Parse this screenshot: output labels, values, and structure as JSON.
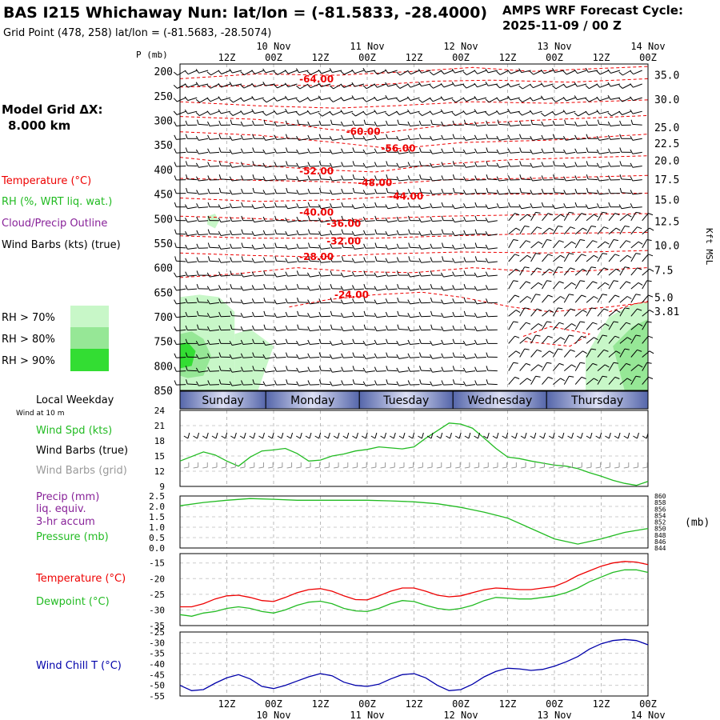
{
  "header": {
    "title": "BAS I215 Whichaway Nun:  lat/lon = (-81.5833, -28.4000)",
    "subtitle": "Grid Point (478, 258) lat/lon = (-81.5683, -28.5074)",
    "forecast_label": "AMPS WRF Forecast Cycle:",
    "forecast_cycle": "2025-11-09 / 00  Z"
  },
  "time_axis": {
    "hours": [
      "12Z",
      "00Z",
      "12Z",
      "00Z",
      "12Z",
      "00Z",
      "12Z",
      "00Z",
      "12Z",
      "00Z"
    ],
    "dates": [
      "10 Nov",
      "11 Nov",
      "12 Nov",
      "13 Nov",
      "14 Nov"
    ],
    "pressure_unit_label": "P (mb)"
  },
  "left_panel": {
    "model_grid_label": "Model Grid ΔX:",
    "model_grid_value": "8.000 km",
    "temperature_label": "Temperature (°C)",
    "rh_label": "RH (%, WRT liq. wat.)",
    "cloud_label": "Cloud/Precip Outline",
    "wind_barbs_label": "Wind Barbs (kts) (true)",
    "rh_legend": [
      {
        "label": "RH > 70%",
        "color": "#c8f7c8"
      },
      {
        "label": "RH > 80%",
        "color": "#96e796"
      },
      {
        "label": "RH > 90%",
        "color": "#33dd33"
      }
    ]
  },
  "weekday": {
    "label": "Local Weekday",
    "days": [
      "Sunday",
      "Monday",
      "Tuesday",
      "Wednesday",
      "Thursday"
    ]
  },
  "wind_panel": {
    "header": "Wind at 10 m",
    "spd_label": "Wind Spd (kts)",
    "barbs_true_label": "Wind Barbs (true)",
    "barbs_grid_label": "Wind Barbs (grid)"
  },
  "precip_panel": {
    "precip_label": "Precip (mm)",
    "liq_label": "liq. equiv.",
    "accum_label": "3-hr accum",
    "pressure_label": "Pressure (mb)",
    "pressure_unit": "(mb)"
  },
  "temp_panel": {
    "temp_label": "Temperature (°C)",
    "dew_label": "Dewpoint (°C)"
  },
  "chill_panel": {
    "label": "Wind Chill T (°C)"
  },
  "colors": {
    "temperature": "#ee0000",
    "rh": "#22bb22",
    "cloud": "#882299",
    "wind_chill": "#0000aa",
    "grid_barbs": "#999999",
    "weekday_bar": "#5566aa"
  },
  "chart_data": [
    {
      "id": "cross_section",
      "type": "line",
      "yaxis_left_label": "P (mb)",
      "yaxis_left_ticks": [
        "200",
        "250",
        "300",
        "350",
        "400",
        "450",
        "500",
        "550",
        "600",
        "650",
        "700",
        "750",
        "800",
        "850"
      ],
      "yaxis_right_label": "Kft MSL",
      "yaxis_right_ticks": [
        {
          "label": "35.0",
          "p": 207
        },
        {
          "label": "30.0",
          "p": 257
        },
        {
          "label": "25.0",
          "p": 314
        },
        {
          "label": "22.5",
          "p": 346
        },
        {
          "label": "20.0",
          "p": 381
        },
        {
          "label": "17.5",
          "p": 420
        },
        {
          "label": "15.0",
          "p": 461
        },
        {
          "label": "12.5",
          "p": 505
        },
        {
          "label": "10.0",
          "p": 554
        },
        {
          "label": "7.5",
          "p": 605
        },
        {
          "label": "5.0",
          "p": 660
        },
        {
          "label": "3.81",
          "p": 689
        }
      ],
      "xrange_hours": [
        0,
        120
      ],
      "yrange_mb": [
        185,
        850
      ],
      "isotherm_labels": [
        {
          "text": "-64.00",
          "hour": 35,
          "p": 216
        },
        {
          "text": "-60.00",
          "hour": 47,
          "p": 323
        },
        {
          "text": "-56.00",
          "hour": 56,
          "p": 357
        },
        {
          "text": "-52.00",
          "hour": 35,
          "p": 403
        },
        {
          "text": "-48.00",
          "hour": 50,
          "p": 427
        },
        {
          "text": "-44.00",
          "hour": 58,
          "p": 455
        },
        {
          "text": "-40.00",
          "hour": 35,
          "p": 487
        },
        {
          "text": "-36.00",
          "hour": 42,
          "p": 510
        },
        {
          "text": "-32.00",
          "hour": 42,
          "p": 546
        },
        {
          "text": "-28.00",
          "hour": 35,
          "p": 578
        },
        {
          "text": "-24.00",
          "hour": 44,
          "p": 655
        }
      ]
    },
    {
      "id": "wind_speed",
      "type": "line",
      "ylabel": "Wind Spd (kts)",
      "ylim": [
        9,
        24
      ],
      "yticks": [
        9,
        12,
        15,
        18,
        21,
        24
      ],
      "x_hours": [
        0,
        6,
        9,
        12,
        15,
        18,
        21,
        24,
        27,
        30,
        33,
        36,
        39,
        42,
        45,
        48,
        51,
        54,
        57,
        60,
        63,
        66,
        69,
        72,
        75,
        78,
        81,
        84,
        87,
        90,
        93,
        96,
        99,
        102,
        105,
        108,
        111,
        114,
        117,
        120
      ],
      "series": [
        {
          "name": "Wind Spd (kts)",
          "color": "#22bb22",
          "values": [
            14,
            15.8,
            15.2,
            14,
            13,
            14.8,
            16,
            16.2,
            16.5,
            15.5,
            14,
            14.2,
            15,
            15.4,
            16,
            16.3,
            16.8,
            16.6,
            16.4,
            16.8,
            18.5,
            20,
            21.5,
            21.3,
            20.5,
            18.5,
            16.5,
            14.8,
            14.5,
            14,
            13.6,
            13.2,
            13,
            12.5,
            11.7,
            11,
            10.2,
            9.6,
            9.2,
            10
          ]
        }
      ]
    },
    {
      "id": "precip_pressure",
      "type": "line",
      "ylabel_left": "Precip (mm)",
      "ylim_left": [
        0,
        2.5
      ],
      "yticks_left": [
        "0.0",
        "0.5",
        "1.0",
        "1.5",
        "2.0",
        "2.5"
      ],
      "ylabel_right": "Pressure (mb)",
      "ylim_right": [
        844,
        860
      ],
      "yticks_right": [
        "844",
        "846",
        "848",
        "850",
        "852",
        "854",
        "856",
        "858",
        "860"
      ],
      "x_hours": [
        0,
        6,
        12,
        18,
        24,
        30,
        36,
        42,
        48,
        54,
        60,
        66,
        72,
        78,
        84,
        90,
        96,
        102,
        108,
        114,
        120
      ],
      "series": [
        {
          "name": "Pressure (mb)",
          "color": "#22bb22",
          "values": [
            857,
            858,
            858.7,
            859.2,
            859,
            858.7,
            858.7,
            858.7,
            858.7,
            858.5,
            858.2,
            857.6,
            856.5,
            855,
            853.2,
            850,
            846.8,
            845.2,
            846.8,
            848.8,
            850
          ]
        }
      ]
    },
    {
      "id": "temperature",
      "type": "line",
      "ylim": [
        -35,
        -12
      ],
      "yticks": [
        -35,
        -30,
        -25,
        -20,
        -15
      ],
      "x_hours": [
        0,
        3,
        6,
        9,
        12,
        15,
        18,
        21,
        24,
        27,
        30,
        33,
        36,
        39,
        42,
        45,
        48,
        51,
        54,
        57,
        60,
        63,
        66,
        69,
        72,
        75,
        78,
        81,
        84,
        87,
        90,
        93,
        96,
        99,
        102,
        105,
        108,
        111,
        114,
        117,
        120
      ],
      "series": [
        {
          "name": "Temperature (°C)",
          "color": "#ee0000",
          "values": [
            -29,
            -29,
            -28,
            -26.5,
            -25.5,
            -25.3,
            -26,
            -27,
            -27.3,
            -26,
            -24.5,
            -23.5,
            -23.2,
            -24,
            -25.5,
            -26.7,
            -26.8,
            -25.5,
            -24,
            -23,
            -23,
            -24,
            -25.3,
            -25.8,
            -25.5,
            -24.5,
            -23.5,
            -23,
            -23.2,
            -23.5,
            -23.5,
            -23,
            -22.5,
            -21,
            -19,
            -17.5,
            -16,
            -15,
            -14.5,
            -14.7,
            -15.5
          ]
        },
        {
          "name": "Dewpoint (°C)",
          "color": "#22bb22",
          "values": [
            -31.5,
            -32,
            -31,
            -30.5,
            -29.5,
            -29,
            -29.5,
            -30.5,
            -31,
            -30,
            -28.5,
            -27.5,
            -27.2,
            -28,
            -29.5,
            -30.3,
            -30.5,
            -29.5,
            -28,
            -27,
            -27.3,
            -28.5,
            -29.5,
            -30,
            -29.5,
            -28.5,
            -27,
            -26,
            -26.2,
            -26.5,
            -26.5,
            -26,
            -25.5,
            -24.5,
            -23,
            -21,
            -19.5,
            -18,
            -17.2,
            -17.2,
            -18
          ]
        }
      ]
    },
    {
      "id": "wind_chill",
      "type": "line",
      "ylabel": "Wind Chill T (°C)",
      "ylim": [
        -55,
        -25
      ],
      "yticks": [
        -55,
        -50,
        -45,
        -40,
        -35,
        -30,
        -25
      ],
      "x_hours": [
        0,
        3,
        6,
        9,
        12,
        15,
        18,
        21,
        24,
        27,
        30,
        33,
        36,
        39,
        42,
        45,
        48,
        51,
        54,
        57,
        60,
        63,
        66,
        69,
        72,
        75,
        78,
        81,
        84,
        87,
        90,
        93,
        96,
        99,
        102,
        105,
        108,
        111,
        114,
        117,
        120
      ],
      "series": [
        {
          "name": "Wind Chill T (°C)",
          "color": "#0000aa",
          "values": [
            -50,
            -52.5,
            -52,
            -49,
            -46.5,
            -45,
            -47,
            -50.5,
            -51.5,
            -50,
            -48,
            -46,
            -44.5,
            -45.5,
            -48.5,
            -50,
            -50.5,
            -49.5,
            -47,
            -45,
            -44.5,
            -46.5,
            -50,
            -52.5,
            -52,
            -49.5,
            -46,
            -43.5,
            -42,
            -42.3,
            -43,
            -42.5,
            -41,
            -39,
            -36.5,
            -33,
            -30.5,
            -29,
            -28.5,
            -29,
            -31
          ]
        }
      ]
    }
  ]
}
